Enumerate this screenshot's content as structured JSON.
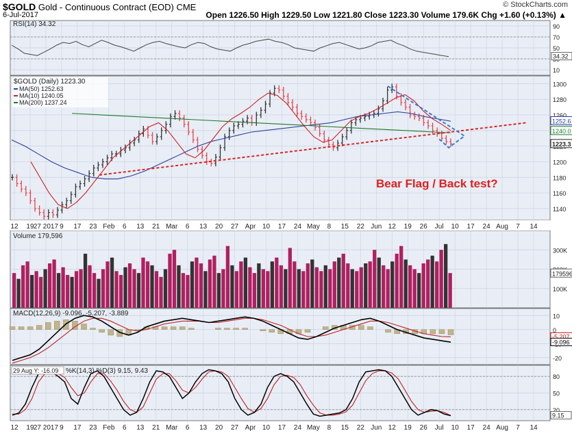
{
  "header": {
    "symbol": "$GOLD",
    "name": "Gold - Continuous Contract (EOD)",
    "exchange": "CME",
    "date": "6-Jul-2017",
    "brand": "© StockCharts.com",
    "ohlc_text": "Open 1226.50  High 1229.50  Low 1221.80  Close 1223.30  Volume 179.6K  Chg +1.60 (+0.13%) ▲"
  },
  "colors": {
    "bg_panel": "#e9eef6",
    "grid": "#c8d2e0",
    "bull": "#e8434a",
    "bear": "#333333",
    "ma50": "#2c3e9e",
    "ma10": "#cc1f1f",
    "ma200": "#1a7a2a",
    "trend": "#e02020",
    "flag": "#3a7bd5"
  },
  "chart_data": [
    {
      "type": "line",
      "title": "RSI(14) 34.32",
      "ylim": [
        0,
        100
      ],
      "yticks": [
        90,
        70,
        50,
        30,
        10
      ],
      "last_value": 34.32,
      "last_label": "34.32",
      "series": [
        {
          "name": "RSI(14)",
          "values": [
            55,
            48,
            40,
            38,
            36,
            42,
            48,
            55,
            60,
            58,
            62,
            56,
            52,
            58,
            64,
            60,
            55,
            52,
            48,
            44,
            50,
            56,
            60,
            62,
            58,
            55,
            52,
            50,
            56,
            60,
            58,
            52,
            48,
            46,
            44,
            50,
            55,
            58,
            62,
            64,
            66,
            62,
            60,
            56,
            50,
            48,
            46,
            44,
            50,
            54,
            58,
            60,
            56,
            52,
            48,
            50,
            54,
            60,
            62,
            64,
            58,
            54,
            48,
            44,
            42,
            40,
            38,
            36,
            34
          ]
        }
      ]
    },
    {
      "type": "line",
      "title": "$GOLD (Daily) 1223.30",
      "legend": [
        "MA(50) 1252.63",
        "MA(10) 1240.05",
        "MA(200) 1237.24"
      ],
      "ylim": [
        1125,
        1310
      ],
      "yticks": [
        1300,
        1280,
        1260,
        1240,
        1220,
        1200,
        1180,
        1160,
        1140
      ],
      "right_labels": [
        "1252.6",
        "1240.0",
        "1223.3"
      ],
      "annotation": "Bear Flag / Back test?",
      "x_tick_labels": [
        "12",
        "19",
        "27 2017",
        "9",
        "17",
        "23",
        "Feb",
        "6",
        "13",
        "21",
        "Mar",
        "6",
        "13",
        "20",
        "27",
        "Apr",
        "10",
        "17",
        "24",
        "May",
        "8",
        "15",
        "22",
        "Jun",
        "12",
        "19",
        "26",
        "Jul",
        "10",
        "17",
        "24",
        "Aug",
        "7",
        "14"
      ],
      "series": [
        {
          "name": "$GOLD (Daily)",
          "values": [
            1180,
            1172,
            1165,
            1160,
            1150,
            1140,
            1135,
            1130,
            1135,
            1132,
            1138,
            1145,
            1150,
            1158,
            1168,
            1172,
            1178,
            1185,
            1192,
            1196,
            1200,
            1205,
            1210,
            1210,
            1215,
            1218,
            1224,
            1228,
            1236,
            1242,
            1234,
            1226,
            1232,
            1240,
            1248,
            1258,
            1262,
            1256,
            1248,
            1238,
            1228,
            1216,
            1208,
            1200,
            1198,
            1206,
            1218,
            1232,
            1240,
            1246,
            1248,
            1252,
            1256,
            1250,
            1260,
            1266,
            1274,
            1288,
            1294,
            1292,
            1284,
            1276,
            1270,
            1262,
            1258,
            1254,
            1250,
            1244,
            1236,
            1228,
            1222,
            1218,
            1224,
            1232,
            1240,
            1250,
            1254,
            1256,
            1258,
            1260,
            1262,
            1268,
            1278,
            1292,
            1296,
            1284,
            1276,
            1270,
            1260,
            1258,
            1256,
            1250,
            1246,
            1240,
            1236,
            1230,
            1226,
            1223
          ]
        },
        {
          "name": "MA(50)",
          "values": [
            1228,
            1220,
            1210,
            1200,
            1192,
            1186,
            1180,
            1178,
            1178,
            1182,
            1188,
            1196,
            1204,
            1212,
            1220,
            1226,
            1230,
            1234,
            1238,
            1240,
            1242,
            1244,
            1246,
            1248,
            1250,
            1254,
            1258,
            1260,
            1262,
            1264,
            1262,
            1258,
            1255,
            1252
          ]
        },
        {
          "name": "MA(200)",
          "values": [
            1262,
            1261,
            1260,
            1259,
            1258,
            1257,
            1256,
            1255,
            1254,
            1253,
            1252,
            1251,
            1250,
            1249,
            1248,
            1247,
            1246,
            1245,
            1244,
            1243,
            1242,
            1241,
            1240,
            1239,
            1238,
            1237
          ]
        },
        {
          "name": "MA(10)",
          "values": [
            1200,
            1180,
            1160,
            1145,
            1140,
            1148,
            1160,
            1175,
            1190,
            1205,
            1215,
            1225,
            1235,
            1245,
            1250,
            1240,
            1225,
            1210,
            1205,
            1215,
            1230,
            1245,
            1255,
            1262,
            1270,
            1280,
            1288,
            1285,
            1275,
            1260,
            1245,
            1232,
            1225,
            1228,
            1240,
            1252,
            1258,
            1262,
            1268,
            1275,
            1282,
            1286,
            1278,
            1265,
            1255,
            1248,
            1240
          ]
        }
      ]
    },
    {
      "type": "bar",
      "title": "Volume 179,596",
      "ylim": [
        0,
        400
      ],
      "yticks": [
        300,
        200,
        100
      ],
      "ytick_labels": [
        "300K",
        "200K",
        "100K"
      ],
      "right_label": "179596",
      "values": [
        180,
        150,
        220,
        240,
        170,
        190,
        160,
        200,
        230,
        250,
        180,
        210,
        170,
        160,
        190,
        200,
        280,
        220,
        180,
        150,
        200,
        240,
        260,
        190,
        170,
        210,
        230,
        200,
        180,
        260,
        240,
        220,
        190,
        160,
        200,
        280,
        300,
        220,
        180,
        170,
        240,
        260,
        230,
        190,
        250,
        270,
        180,
        200,
        320,
        220,
        190,
        240,
        260,
        210,
        180,
        230,
        200,
        190,
        240,
        260,
        220,
        200,
        310,
        240,
        200,
        190,
        230,
        250,
        210,
        190,
        220,
        200,
        240,
        260,
        280,
        230,
        200,
        190,
        210,
        230,
        240,
        300,
        260,
        220,
        200,
        240,
        280,
        320,
        250,
        220,
        200,
        180,
        230,
        250,
        270,
        240,
        300,
        330,
        180
      ]
    },
    {
      "type": "line",
      "title": "MACD(12,26,9) -9.096, -5.207, -3.889",
      "ylim": [
        -25,
        15
      ],
      "yticks": [
        10,
        0,
        -10,
        -20
      ],
      "right_labels": [
        "-5.207",
        "-9.096"
      ],
      "series": [
        {
          "name": "MACD",
          "values": [
            -22,
            -20,
            -18,
            -14,
            -8,
            -2,
            4,
            8,
            10,
            9,
            6,
            2,
            -2,
            -4,
            -2,
            2,
            4,
            6,
            7,
            8,
            7,
            6,
            5,
            6,
            7,
            8,
            9,
            8,
            6,
            3,
            0,
            -3,
            -6,
            -7,
            -5,
            -2,
            1,
            3,
            5,
            7,
            8,
            6,
            3,
            0,
            -2,
            -4,
            -6,
            -7,
            -8,
            -9
          ]
        },
        {
          "name": "Signal",
          "values": [
            -24,
            -22,
            -20,
            -17,
            -13,
            -8,
            -3,
            2,
            6,
            8,
            8,
            6,
            3,
            0,
            -1,
            0,
            2,
            4,
            5,
            6,
            6,
            6,
            5,
            5,
            6,
            7,
            8,
            8,
            7,
            5,
            3,
            0,
            -3,
            -5,
            -5,
            -4,
            -2,
            0,
            2,
            4,
            6,
            6,
            5,
            3,
            1,
            -1,
            -3,
            -4,
            -5,
            -5.2
          ]
        }
      ]
    },
    {
      "type": "line",
      "title": "%K(14,3) %D(3) 9.15, 9.43",
      "hover_label": "29 Aug Y: -16.09",
      "ylim": [
        0,
        100
      ],
      "yticks": [
        80,
        50,
        20
      ],
      "right_label": "9.15",
      "x_tick_labels": [
        "12",
        "19",
        "27 2017",
        "9",
        "17",
        "23",
        "Feb",
        "6",
        "13",
        "21",
        "Mar",
        "6",
        "13",
        "20",
        "27",
        "Apr",
        "10",
        "17",
        "24",
        "May",
        "8",
        "15",
        "22",
        "Jun",
        "12",
        "19",
        "26",
        "Jul",
        "10",
        "17",
        "24",
        "Aug",
        "7",
        "14"
      ],
      "series": [
        {
          "name": "%K",
          "values": [
            10,
            14,
            30,
            60,
            85,
            90,
            88,
            80,
            70,
            40,
            30,
            60,
            85,
            90,
            80,
            60,
            40,
            20,
            10,
            15,
            40,
            70,
            90,
            88,
            80,
            60,
            40,
            50,
            70,
            85,
            92,
            90,
            85,
            70,
            40,
            20,
            10,
            15,
            30,
            60,
            80,
            85,
            80,
            70,
            50,
            30,
            12,
            8,
            10,
            12,
            14,
            20,
            40,
            70,
            88,
            90,
            92,
            90,
            80,
            60,
            40,
            20,
            10,
            15,
            20,
            18,
            12,
            9
          ]
        },
        {
          "name": "%D",
          "values": [
            12,
            12,
            20,
            40,
            70,
            85,
            88,
            85,
            78,
            60,
            45,
            50,
            70,
            85,
            85,
            72,
            55,
            35,
            20,
            15,
            25,
            50,
            75,
            85,
            85,
            72,
            55,
            50,
            60,
            75,
            88,
            90,
            88,
            80,
            60,
            40,
            22,
            15,
            22,
            40,
            65,
            80,
            82,
            78,
            65,
            45,
            28,
            14,
            10,
            10,
            12,
            16,
            28,
            50,
            72,
            85,
            90,
            90,
            86,
            75,
            55,
            35,
            20,
            15,
            17,
            18,
            15,
            9.43
          ]
        }
      ]
    }
  ]
}
